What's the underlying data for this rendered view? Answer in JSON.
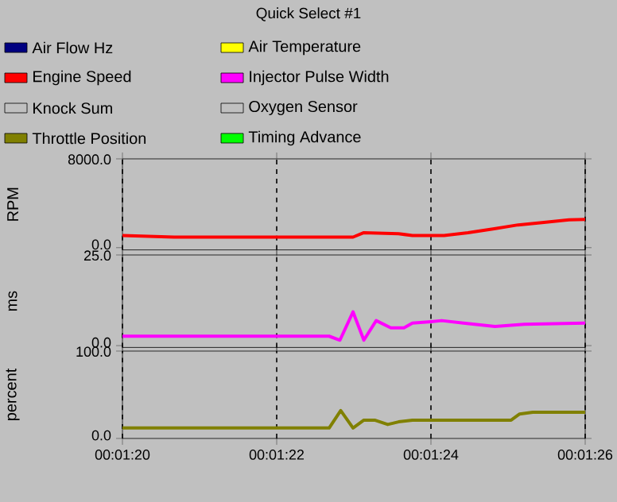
{
  "chart_data": [
    {
      "type": "line",
      "title": "Quick Select #1",
      "ylabel": "RPM",
      "legend": "top",
      "grid": "x",
      "marker": "none",
      "line_style": "solid",
      "tick_labels": "y",
      "xlim": [
        80,
        86
      ],
      "xticks": [
        {
          "value": 80,
          "label": null
        },
        {
          "value": 82,
          "label": null
        },
        {
          "value": 84,
          "label": null
        },
        {
          "value": 86,
          "label": null
        }
      ],
      "ylim": [
        -200,
        8000
      ],
      "yticks": [
        {
          "value": 0,
          "label": "0.0"
        },
        {
          "value": 8000,
          "label": "8000.0"
        }
      ],
      "series": [
        {
          "name": "Air Flow Hz",
          "color": "#000080"
        },
        {
          "name": "Air Temperature",
          "color": "#ffff00"
        },
        {
          "name": "Engine Speed",
          "color": "#ff0000",
          "x": [
            80,
            80.67,
            82.99,
            83.13,
            83.58,
            83.76,
            84.17,
            84.48,
            84.82,
            85.13,
            85.44,
            85.79,
            86
          ],
          "values": [
            1100,
            950,
            950,
            1350,
            1250,
            1100,
            1100,
            1350,
            1700,
            2050,
            2250,
            2500,
            2550
          ]
        },
        {
          "name": "Injector Pulse Width",
          "color": "#ff00ff"
        },
        {
          "name": "Knock Sum",
          "color": "#c0c0c0"
        },
        {
          "name": "Oxygen Sensor",
          "color": "#c0c0c0"
        },
        {
          "name": "Throttle Position",
          "color": "#808000"
        },
        {
          "name": "Timing Advance",
          "color": "#00ff00"
        }
      ]
    },
    {
      "type": "line",
      "ylabel": "ms",
      "grid": "x",
      "marker": "none",
      "line_style": "solid",
      "tick_labels": "y",
      "xlim": [
        80,
        86
      ],
      "xticks": [
        {
          "value": 80,
          "label": null
        },
        {
          "value": 82,
          "label": null
        },
        {
          "value": 84,
          "label": null
        },
        {
          "value": 86,
          "label": null
        }
      ],
      "ylim": [
        -0.5,
        25
      ],
      "yticks": [
        {
          "value": 0,
          "label": "0.0"
        },
        {
          "value": 25,
          "label": "25.0"
        }
      ],
      "series": [
        {
          "color": "#ff00ff",
          "x": [
            80,
            82.68,
            82.82,
            82.99,
            83.13,
            83.29,
            83.48,
            83.65,
            83.76,
            84,
            84.14,
            84.42,
            84.83,
            85.21,
            86
          ],
          "values": [
            2.6,
            2.6,
            1.5,
            9.3,
            1.5,
            6.9,
            4.9,
            4.9,
            6.2,
            6.6,
            6.9,
            6.2,
            5.3,
            5.9,
            6.2
          ]
        }
      ]
    },
    {
      "type": "line",
      "ylabel": "percent",
      "grid": "x",
      "marker": "none",
      "line_style": "solid",
      "xlim": [
        80,
        86
      ],
      "xticks": [
        {
          "value": 80,
          "label": "00:01:20"
        },
        {
          "value": 82,
          "label": "00:01:22"
        },
        {
          "value": 84,
          "label": "00:01:24"
        },
        {
          "value": 86,
          "label": "00:01:26"
        }
      ],
      "ylim": [
        0,
        100
      ],
      "yticks": [
        {
          "value": 0,
          "label": "0.0"
        },
        {
          "value": 100,
          "label": "100.0"
        }
      ],
      "series": [
        {
          "color": "#808000",
          "x": [
            80,
            82.68,
            82.83,
            82.99,
            83.13,
            83.27,
            83.44,
            83.58,
            83.76,
            85.04,
            85.15,
            85.32,
            86
          ],
          "values": [
            12,
            12,
            32,
            12,
            21,
            21,
            16,
            19,
            21,
            21,
            28,
            30,
            30
          ]
        }
      ]
    }
  ]
}
